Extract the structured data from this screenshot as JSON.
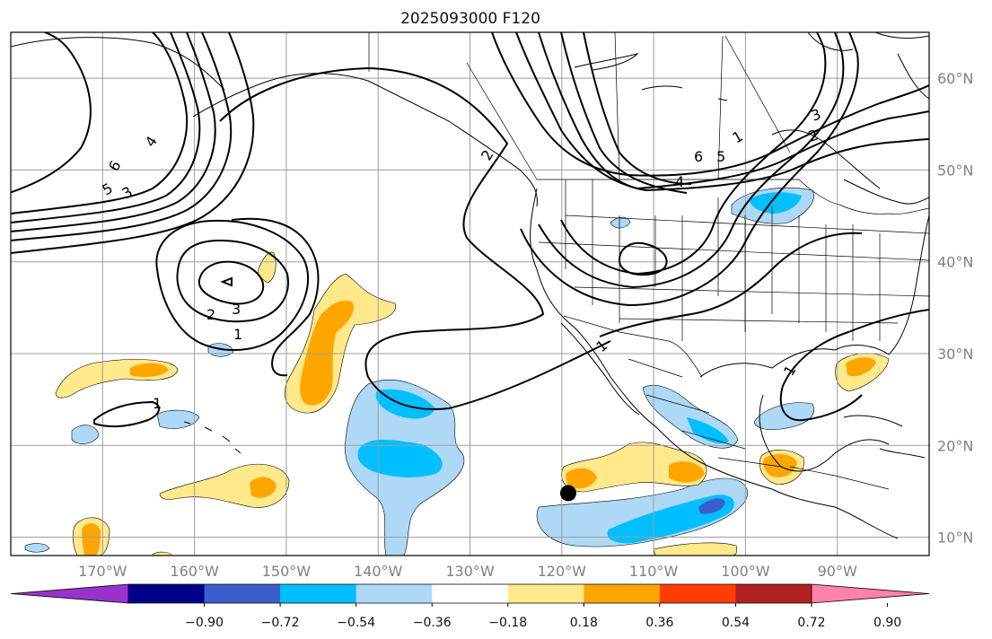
{
  "title": "2025093000 F120",
  "map": {
    "lon_labels": [
      "170°W",
      "160°W",
      "150°W",
      "140°W",
      "130°W",
      "120°W",
      "110°W",
      "100°W",
      "90°W"
    ],
    "lat_labels": [
      "60°N",
      "50°N",
      "40°N",
      "30°N",
      "20°N",
      "10°N"
    ],
    "extent": {
      "lon": [
        -180,
        -80
      ],
      "lat": [
        8,
        65
      ]
    },
    "gridlines": true,
    "contour_labels": [
      "6",
      "5",
      "4",
      "3",
      "2",
      "1",
      "1",
      "2",
      "3",
      "4",
      "5",
      "6",
      "1",
      "1",
      "3",
      "2",
      "1"
    ],
    "marker": {
      "lon": -119.3,
      "lat": 14.8,
      "color": "#000000"
    }
  },
  "colorbar": {
    "ticks": [
      "−0.90",
      "−0.72",
      "−0.54",
      "−0.36",
      "−0.18",
      "0.18",
      "0.36",
      "0.54",
      "0.72",
      "0.90"
    ],
    "colors": [
      "#9932cc",
      "#00008b",
      "#3a5fcd",
      "#00bfff",
      "#add8f6",
      "#ffffff",
      "#ffe98a",
      "#ffa500",
      "#ff3d00",
      "#b22222",
      "#ff82ab"
    ],
    "extend": "both"
  },
  "colors": {
    "line": "#000000",
    "grid": "#9e9e9e",
    "neg1": "#add8f6",
    "neg2": "#00bfff",
    "neg3": "#3a5fcd",
    "pos1": "#ffe98a",
    "pos2": "#ffa500"
  }
}
